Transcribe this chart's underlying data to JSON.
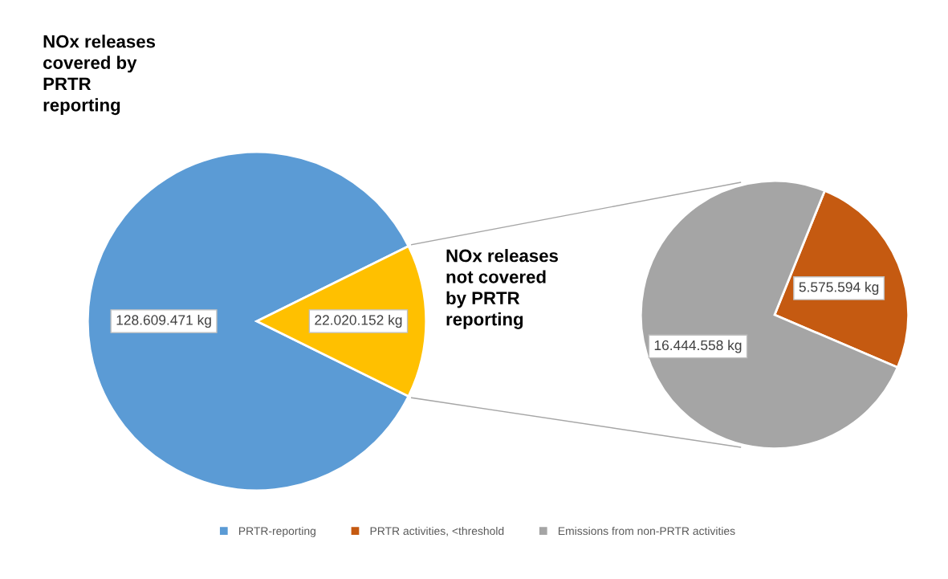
{
  "chart_data": [
    {
      "type": "pie",
      "title": "NOx releases\ncovered by\nPRTR\nreporting",
      "categories": [
        "PRTR-reporting",
        null
      ],
      "values": [
        128609471,
        22020152
      ],
      "colors": [
        "#5b9bd5",
        "#ffc000"
      ],
      "value_labels": [
        "128.609.471 kg",
        "22.020.152 kg"
      ],
      "legend": "bottom"
    },
    {
      "type": "pie",
      "title": "NOx releases\nnot covered\nby PRTR\nreporting",
      "categories": [
        "PRTR activities, <threshold",
        "Emissions from non-PRTR activities"
      ],
      "values": [
        5575594,
        16444558
      ],
      "colors": [
        "#c55a11",
        "#a5a5a5"
      ],
      "value_labels": [
        "5.575.594 kg",
        "16.444.558 kg"
      ],
      "legend": "bottom"
    }
  ]
}
